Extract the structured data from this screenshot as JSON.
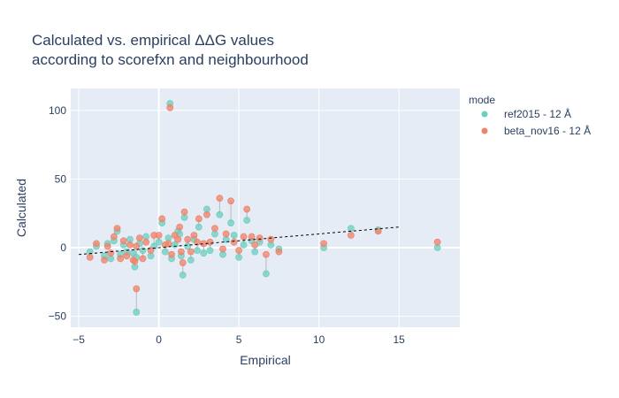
{
  "chart_data": {
    "type": "scatter",
    "title_lines": [
      "Calculated vs. empirical ΔΔG values",
      "according to scorefxn and neighbourhood"
    ],
    "xlabel": "Empirical",
    "ylabel": "Calculated",
    "xlim": [
      -5.5,
      18.8
    ],
    "ylim": [
      -58,
      116
    ],
    "x_ticks": [
      -5,
      0,
      5,
      10,
      15
    ],
    "y_ticks": [
      -50,
      0,
      50,
      100
    ],
    "grid": true,
    "legend": {
      "title": "mode",
      "placement": "top-right"
    },
    "colors": {
      "plot_bg": "#e5ecf6",
      "grid": "#ffffff",
      "ref2015": "#6ccfc0",
      "beta_nov16": "#f0826a",
      "connector": "#b8b8b8",
      "trend": "#000000"
    },
    "trend_line": {
      "x": [
        -5,
        15
      ],
      "y": [
        -5,
        15
      ]
    },
    "series": [
      {
        "name": "ref2015 - 12 Å",
        "x": [
          -4.3,
          -3.9,
          -3.4,
          -3.2,
          -3.0,
          -2.8,
          -2.6,
          -2.4,
          -2.2,
          -2.0,
          -1.8,
          -1.6,
          -1.5,
          -1.4,
          -1.2,
          -1.0,
          -0.8,
          -0.5,
          -0.3,
          0.0,
          0.2,
          0.4,
          0.6,
          0.8,
          1.0,
          1.2,
          1.4,
          1.6,
          1.8,
          2.0,
          2.2,
          2.5,
          2.8,
          3.0,
          3.2,
          3.5,
          3.8,
          4.0,
          4.2,
          4.5,
          4.7,
          5.0,
          5.3,
          5.5,
          5.8,
          6.0,
          6.3,
          6.7,
          7.0,
          7.5,
          0.7,
          -1.4,
          10.3,
          12.0,
          13.7,
          17.4,
          1.5,
          1.3,
          2.4
        ],
        "y": [
          -3,
          1,
          -6,
          3,
          -8,
          5,
          12,
          -5,
          2,
          -3,
          6,
          -4,
          -14,
          -7,
          3,
          -2,
          8,
          -6,
          1,
          4,
          18,
          -3,
          7,
          -8,
          2,
          12,
          -6,
          22,
          1,
          -9,
          6,
          15,
          -4,
          28,
          -2,
          10,
          24,
          -5,
          6,
          18,
          9,
          -7,
          2,
          20,
          5,
          -3,
          4,
          -19,
          2,
          -1,
          105,
          -47,
          0,
          14,
          13,
          0,
          -20,
          10,
          -2
        ]
      },
      {
        "name": "beta_nov16 - 12 Å",
        "x": [
          -4.3,
          -3.9,
          -3.4,
          -3.2,
          -3.0,
          -2.8,
          -2.6,
          -2.4,
          -2.2,
          -2.0,
          -1.8,
          -1.6,
          -1.5,
          -1.4,
          -1.2,
          -1.0,
          -0.8,
          -0.5,
          -0.3,
          0.0,
          0.2,
          0.4,
          0.6,
          0.8,
          1.0,
          1.2,
          1.4,
          1.6,
          1.8,
          2.0,
          2.2,
          2.5,
          2.8,
          3.0,
          3.2,
          3.5,
          3.8,
          4.0,
          4.2,
          4.5,
          4.7,
          5.0,
          5.3,
          5.5,
          5.8,
          6.0,
          6.3,
          6.7,
          7.0,
          7.5,
          0.7,
          -1.4,
          10.3,
          12.0,
          13.7,
          17.4,
          1.5,
          1.3,
          2.4
        ],
        "y": [
          -7,
          3,
          -9,
          1,
          -4,
          8,
          14,
          -8,
          5,
          -6,
          2,
          -9,
          -10,
          1,
          7,
          -8,
          4,
          -2,
          9,
          9,
          21,
          2,
          3,
          -5,
          9,
          6,
          -3,
          26,
          6,
          -3,
          9,
          21,
          3,
          24,
          4,
          14,
          36,
          -1,
          10,
          34,
          4,
          -2,
          8,
          28,
          8,
          2,
          7,
          -5,
          6,
          -3,
          102,
          -30,
          3,
          9,
          12,
          4,
          -11,
          15,
          4
        ]
      }
    ]
  }
}
